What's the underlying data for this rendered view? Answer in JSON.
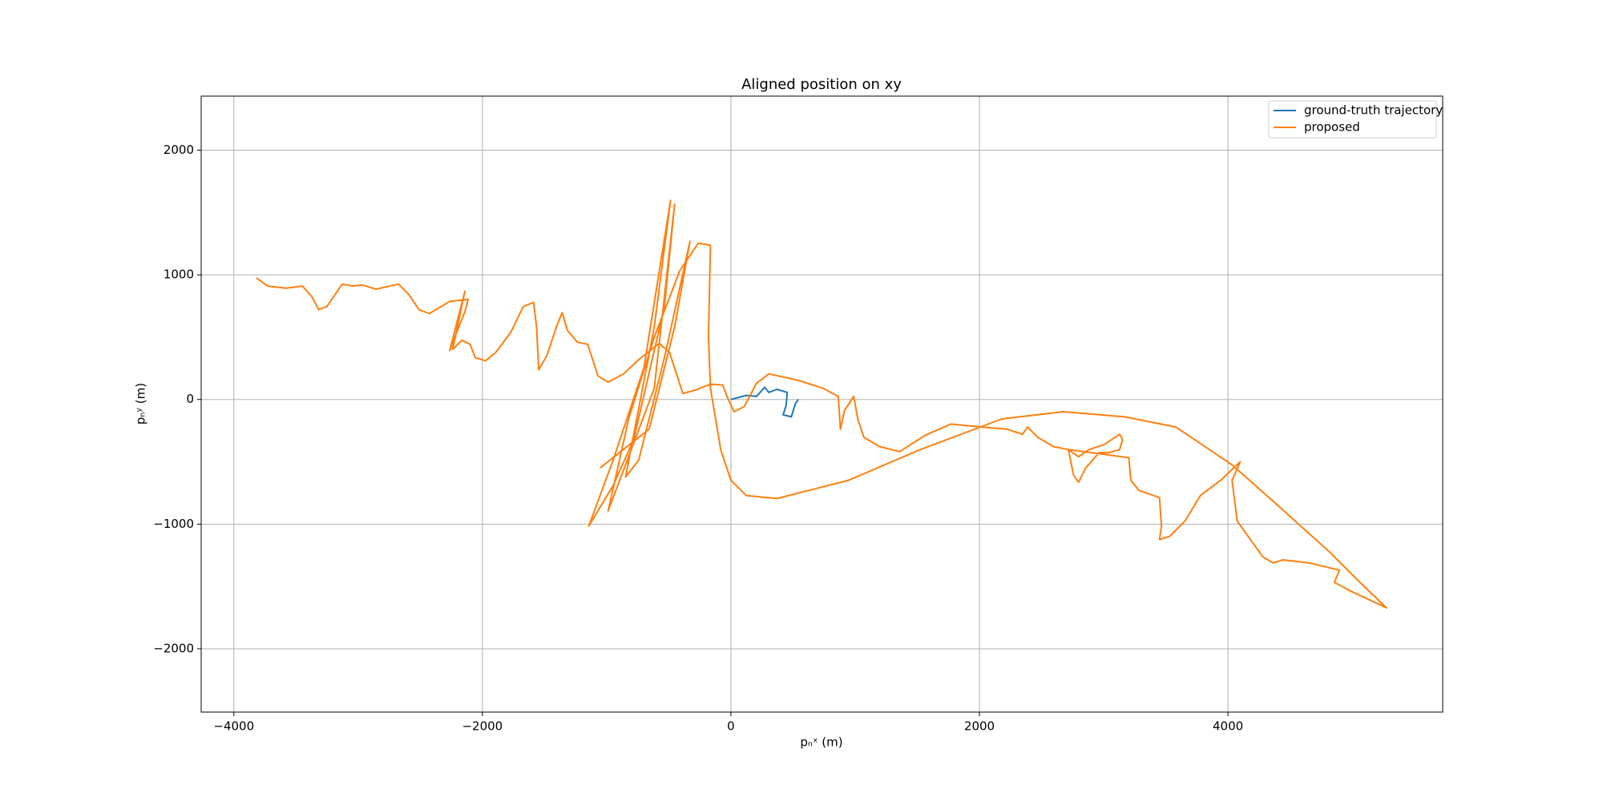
{
  "chart_data": {
    "type": "line",
    "title": "Aligned position on xy",
    "xlabel": "pₙˣ (m)",
    "ylabel": "pₙʸ (m)",
    "xlim": [
      -4263,
      5728
    ],
    "ylim": [
      -2508,
      2434
    ],
    "xticks": [
      {
        "value": -4000,
        "label": "−4000"
      },
      {
        "value": -2000,
        "label": "−2000"
      },
      0,
      2000,
      4000
    ],
    "yticks": [
      {
        "value": -2000,
        "label": "−2000"
      },
      {
        "value": -1000,
        "label": "−1000"
      },
      0,
      1000,
      2000
    ],
    "grid": true,
    "legend": "upper right",
    "series": [
      {
        "name": "ground-truth trajectory",
        "color": "#1f77b4",
        "x": [
          0,
          123,
          206,
          272,
          305,
          370,
          453,
          444,
          420,
          486,
          519,
          543
        ],
        "values": [
          0,
          33,
          25,
          98,
          57,
          82,
          57,
          -49,
          -123,
          -139,
          -33,
          0
        ]
      },
      {
        "name": "proposed",
        "color": "#ff7f0e",
        "x": [
          -3819,
          -3728,
          -3580,
          -3449,
          -3374,
          -3317,
          -3251,
          -3128,
          -3045,
          -2963,
          -2856,
          -2675,
          -2593,
          -2510,
          -2428,
          -2263,
          -2115,
          -2140,
          -2222,
          -2263,
          -2140,
          -2239,
          -2165,
          -2099,
          -2058,
          -1975,
          -1893,
          -1770,
          -1671,
          -1588,
          -1564,
          -1547,
          -1481,
          -1399,
          -1358,
          -1317,
          -1235,
          -1152,
          -1070,
          -988,
          -864,
          -741,
          -576,
          -494,
          -387,
          -288,
          -165,
          -66,
          -25,
          25,
          107,
          206,
          305,
          535,
          741,
          864,
          881,
          914,
          988,
          1021,
          1070,
          1193,
          1358,
          1564,
          1770,
          2016,
          2222,
          2346,
          2387,
          2469,
          2593,
          2716,
          2798,
          2881,
          3004,
          3128,
          3152,
          3128,
          3045,
          2963,
          2856,
          2798,
          2757,
          2716,
          3202,
          3218,
          3284,
          3449,
          3465,
          3449,
          3531,
          3654,
          3778,
          3942,
          4099,
          4033,
          4074,
          4280,
          4362,
          4444,
          4650,
          4897,
          4856,
          4979,
          5276,
          5062,
          4815,
          4403,
          4033,
          3580,
          3169,
          2675,
          2181,
          1523,
          947,
          370,
          123,
          0,
          -82,
          -165,
          -181,
          -165,
          -263,
          -412,
          -617,
          -823,
          -988,
          -864,
          -617,
          -453,
          -535,
          -782,
          -947,
          -1144,
          -947,
          -700,
          -486,
          -617,
          -848,
          -741,
          -535,
          -329,
          -453,
          -658,
          -1053
        ],
        "values": [
          975,
          910,
          893,
          910,
          828,
          721,
          746,
          926,
          910,
          918,
          885,
          926,
          844,
          721,
          689,
          787,
          803,
          705,
          500,
          393,
          869,
          402,
          475,
          443,
          336,
          311,
          377,
          541,
          746,
          779,
          582,
          238,
          352,
          598,
          697,
          557,
          459,
          443,
          189,
          139,
          205,
          320,
          451,
          377,
          49,
          74,
          123,
          115,
          8,
          -98,
          -57,
          131,
          205,
          156,
          90,
          25,
          -238,
          -90,
          25,
          -156,
          -303,
          -377,
          -418,
          -287,
          -197,
          -221,
          -238,
          -279,
          -221,
          -303,
          -377,
          -402,
          -459,
          -402,
          -361,
          -279,
          -320,
          -402,
          -426,
          -426,
          -549,
          -664,
          -607,
          -402,
          -467,
          -648,
          -730,
          -787,
          -1016,
          -1123,
          -1098,
          -975,
          -770,
          -648,
          -500,
          -648,
          -975,
          -1262,
          -1311,
          -1287,
          -1311,
          -1369,
          -1467,
          -1533,
          -1672,
          -1467,
          -1221,
          -852,
          -525,
          -221,
          -139,
          -98,
          -156,
          -402,
          -648,
          -795,
          -770,
          -648,
          -402,
          90,
          500,
          1238,
          1254,
          1033,
          500,
          -156,
          -893,
          -566,
          90,
          1566,
          746,
          -320,
          -689,
          -1016,
          -484,
          254,
          1598,
          582,
          -623,
          -484,
          336,
          1270,
          582,
          -238,
          -549
        ]
      }
    ]
  }
}
